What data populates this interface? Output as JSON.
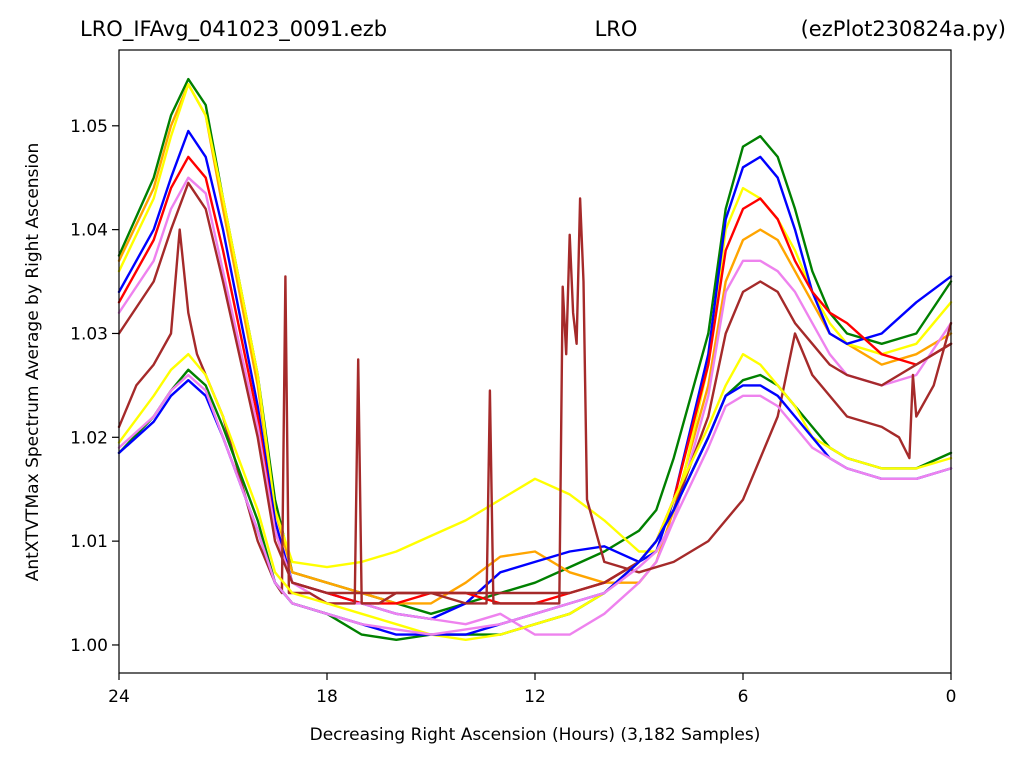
{
  "chart_data": {
    "type": "line",
    "title_parts": [
      "LRO_IFAvg_041023_0091.ezb",
      "LRO",
      "(ezPlot230824a.py)"
    ],
    "xlabel": "Decreasing Right Ascension (Hours) (3,182 Samples)",
    "ylabel": "AntXTVTMax Spectrum Average by Right Ascension",
    "xlim": [
      24,
      0
    ],
    "ylim": [
      0.9973,
      1.0573
    ],
    "xticks": [
      24,
      18,
      12,
      6,
      0
    ],
    "xtick_labels": [
      "24",
      "18",
      "12",
      "6",
      "0"
    ],
    "yticks": [
      1.0,
      1.01,
      1.02,
      1.03,
      1.04,
      1.05
    ],
    "ytick_labels": [
      "1.00",
      "1.01",
      "1.02",
      "1.03",
      "1.04",
      "1.05"
    ],
    "grid": false,
    "legend": "none",
    "series": [
      {
        "color": "#008000",
        "x": [
          24,
          23,
          22.5,
          22,
          21.5,
          21,
          20,
          19.5,
          19,
          18,
          17,
          16,
          15,
          14,
          13,
          12,
          11,
          10,
          9,
          8.5,
          8,
          7,
          6.5,
          6,
          5.5,
          5,
          4.5,
          4,
          3.5,
          3,
          2,
          1,
          0
        ],
        "y": [
          1.0375,
          1.045,
          1.051,
          1.0545,
          1.052,
          1.043,
          1.026,
          1.014,
          1.007,
          1.006,
          1.005,
          1.004,
          1.003,
          1.004,
          1.005,
          1.006,
          1.0075,
          1.009,
          1.011,
          1.013,
          1.018,
          1.03,
          1.042,
          1.048,
          1.049,
          1.047,
          1.042,
          1.036,
          1.032,
          1.03,
          1.029,
          1.03,
          1.035
        ]
      },
      {
        "color": "#ffa500",
        "x": [
          24,
          23,
          22.5,
          22,
          21.5,
          21,
          20,
          19.5,
          19,
          18,
          17,
          16,
          15,
          14,
          13,
          12,
          11,
          10,
          9,
          8.5,
          8,
          7,
          6.5,
          6,
          5.5,
          5,
          4.5,
          4,
          3.5,
          3,
          2,
          1,
          0
        ],
        "y": [
          1.037,
          1.044,
          1.05,
          1.054,
          1.051,
          1.042,
          1.025,
          1.013,
          1.007,
          1.006,
          1.005,
          1.004,
          1.004,
          1.006,
          1.0085,
          1.009,
          1.007,
          1.006,
          1.006,
          1.008,
          1.013,
          1.025,
          1.035,
          1.039,
          1.04,
          1.039,
          1.036,
          1.033,
          1.03,
          1.029,
          1.027,
          1.028,
          1.03
        ]
      },
      {
        "color": "#ffff00",
        "x": [
          24,
          23,
          22.5,
          22,
          21.5,
          21,
          20,
          19.5,
          19,
          18,
          17,
          16,
          15,
          14,
          13,
          12,
          11,
          10,
          9,
          8.5,
          8,
          7,
          6.5,
          6,
          5.5,
          5,
          4.5,
          4,
          3.5,
          3,
          2,
          1,
          0
        ],
        "y": [
          1.036,
          1.043,
          1.049,
          1.054,
          1.051,
          1.043,
          1.026,
          1.013,
          1.008,
          1.0075,
          1.008,
          1.009,
          1.0105,
          1.012,
          1.014,
          1.016,
          1.0145,
          1.012,
          1.009,
          1.009,
          1.012,
          1.027,
          1.04,
          1.044,
          1.043,
          1.041,
          1.038,
          1.034,
          1.031,
          1.029,
          1.028,
          1.029,
          1.033
        ]
      },
      {
        "color": "#0000ff",
        "x": [
          24,
          23,
          22.5,
          22,
          21.5,
          21,
          20,
          19.5,
          19,
          18,
          17,
          16,
          15,
          14,
          13,
          12,
          11,
          10,
          9,
          8.5,
          8,
          7,
          6.5,
          6,
          5.5,
          5,
          4.5,
          4,
          3.5,
          3,
          2,
          1,
          0
        ],
        "y": [
          1.034,
          1.04,
          1.045,
          1.0495,
          1.047,
          1.04,
          1.023,
          1.012,
          1.006,
          1.005,
          1.004,
          1.003,
          1.0025,
          1.004,
          1.007,
          1.008,
          1.009,
          1.0095,
          1.008,
          1.009,
          1.014,
          1.028,
          1.041,
          1.046,
          1.047,
          1.045,
          1.04,
          1.034,
          1.03,
          1.029,
          1.03,
          1.033,
          1.0355
        ]
      },
      {
        "color": "#ff0000",
        "x": [
          24,
          23,
          22.5,
          22,
          21.5,
          21,
          20,
          19.5,
          19,
          18,
          17,
          16,
          15,
          14,
          13,
          12,
          11,
          10,
          9,
          8.5,
          8,
          7,
          6.5,
          6,
          5.5,
          5,
          4.5,
          4,
          3.5,
          3,
          2,
          1,
          0
        ],
        "y": [
          1.033,
          1.039,
          1.044,
          1.047,
          1.045,
          1.038,
          1.022,
          1.011,
          1.006,
          1.005,
          1.004,
          1.004,
          1.005,
          1.005,
          1.004,
          1.004,
          1.005,
          1.006,
          1.008,
          1.01,
          1.014,
          1.027,
          1.038,
          1.042,
          1.043,
          1.041,
          1.037,
          1.034,
          1.032,
          1.031,
          1.028,
          1.027,
          1.029
        ]
      },
      {
        "color": "#ee82ee",
        "x": [
          24,
          23,
          22.5,
          22,
          21.5,
          21,
          20,
          19.5,
          19,
          18,
          17,
          16,
          15,
          14,
          13,
          12,
          11,
          10,
          9,
          8.5,
          8,
          7,
          6.5,
          6,
          5.5,
          5,
          4.5,
          4,
          3.5,
          3,
          2,
          1,
          0
        ],
        "y": [
          1.032,
          1.037,
          1.042,
          1.045,
          1.0435,
          1.036,
          1.021,
          1.011,
          1.006,
          1.004,
          1.004,
          1.003,
          1.0025,
          1.002,
          1.003,
          1.001,
          1.001,
          1.003,
          1.006,
          1.008,
          1.012,
          1.024,
          1.034,
          1.037,
          1.037,
          1.036,
          1.034,
          1.031,
          1.028,
          1.026,
          1.025,
          1.026,
          1.031
        ]
      },
      {
        "color": "#a52a2a",
        "x": [
          24,
          23,
          22.5,
          22,
          21.5,
          21,
          20,
          19.5,
          19,
          18,
          17,
          16,
          15,
          14,
          13,
          12,
          11,
          10,
          9,
          8.5,
          8,
          7,
          6.5,
          6,
          5.5,
          5,
          4.5,
          4,
          3.5,
          3,
          2,
          1,
          0
        ],
        "y": [
          1.03,
          1.035,
          1.04,
          1.0445,
          1.042,
          1.035,
          1.02,
          1.01,
          1.006,
          1.005,
          1.005,
          1.005,
          1.005,
          1.005,
          1.005,
          1.005,
          1.005,
          1.006,
          1.008,
          1.01,
          1.013,
          1.022,
          1.03,
          1.034,
          1.035,
          1.034,
          1.031,
          1.029,
          1.027,
          1.026,
          1.025,
          1.027,
          1.029
        ]
      },
      {
        "color": "#a52a2a",
        "x": [
          24,
          23.5,
          23,
          22.5,
          22.25,
          22,
          21.75,
          21.5,
          21,
          20.5,
          20,
          19.5,
          19.3,
          19.2,
          19.1,
          19,
          18.5,
          18,
          17.2,
          17.1,
          17,
          16.5,
          16,
          15,
          14,
          13.4,
          13.3,
          13.2,
          13.1,
          13,
          12,
          11.3,
          11.2,
          11.1,
          11.0,
          10.9,
          10.8,
          10.7,
          10.6,
          10.5,
          10,
          9,
          8,
          7,
          6,
          5,
          4.5,
          4,
          3,
          2,
          1.5,
          1.2,
          1.1,
          1,
          0.5,
          0
        ],
        "y": [
          1.021,
          1.025,
          1.027,
          1.03,
          1.04,
          1.032,
          1.028,
          1.026,
          1.022,
          1.016,
          1.01,
          1.006,
          1.005,
          1.0355,
          1.005,
          1.005,
          1.005,
          1.004,
          1.004,
          1.0275,
          1.004,
          1.004,
          1.005,
          1.005,
          1.004,
          1.004,
          1.0245,
          1.004,
          1.004,
          1.004,
          1.004,
          1.004,
          1.0345,
          1.028,
          1.0395,
          1.032,
          1.029,
          1.043,
          1.035,
          1.014,
          1.008,
          1.007,
          1.008,
          1.01,
          1.014,
          1.022,
          1.03,
          1.026,
          1.022,
          1.021,
          1.02,
          1.018,
          1.026,
          1.022,
          1.025,
          1.031
        ]
      },
      {
        "color": "#008000",
        "x": [
          24,
          23,
          22.5,
          22,
          21.5,
          21,
          20,
          19.5,
          19,
          18,
          17,
          16,
          15,
          14,
          13,
          12,
          11,
          10,
          9,
          8.5,
          8,
          7,
          6.5,
          6,
          5.5,
          5,
          4.5,
          4,
          3.5,
          3,
          2,
          1,
          0
        ],
        "y": [
          1.0185,
          1.022,
          1.0245,
          1.0265,
          1.025,
          1.021,
          1.012,
          1.006,
          1.004,
          1.003,
          1.001,
          1.0005,
          1.001,
          1.001,
          1.001,
          1.002,
          1.003,
          1.005,
          1.008,
          1.01,
          1.013,
          1.02,
          1.024,
          1.0255,
          1.026,
          1.025,
          1.023,
          1.021,
          1.019,
          1.018,
          1.017,
          1.017,
          1.0185
        ]
      },
      {
        "color": "#ffff00",
        "x": [
          24,
          23,
          22.5,
          22,
          21.5,
          21,
          20,
          19.5,
          19,
          18,
          17,
          16,
          15,
          14,
          13,
          12,
          11,
          10,
          9,
          8.5,
          8,
          7,
          6.5,
          6,
          5.5,
          5,
          4.5,
          4,
          3.5,
          3,
          2,
          1,
          0
        ],
        "y": [
          1.0195,
          1.024,
          1.0265,
          1.028,
          1.026,
          1.022,
          1.013,
          1.007,
          1.005,
          1.004,
          1.003,
          1.002,
          1.001,
          1.0005,
          1.001,
          1.002,
          1.003,
          1.005,
          1.008,
          1.01,
          1.014,
          1.021,
          1.025,
          1.028,
          1.027,
          1.025,
          1.023,
          1.02,
          1.019,
          1.018,
          1.017,
          1.017,
          1.018
        ]
      },
      {
        "color": "#0000ff",
        "x": [
          24,
          23,
          22.5,
          22,
          21.5,
          21,
          20,
          19.5,
          19,
          18,
          17,
          16,
          15,
          14,
          13,
          12,
          11,
          10,
          9,
          8.5,
          8,
          7,
          6.5,
          6,
          5.5,
          5,
          4.5,
          4,
          3.5,
          3,
          2,
          1,
          0
        ],
        "y": [
          1.0185,
          1.0215,
          1.024,
          1.0255,
          1.024,
          1.02,
          1.011,
          1.006,
          1.004,
          1.003,
          1.002,
          1.001,
          1.001,
          1.001,
          1.002,
          1.003,
          1.004,
          1.005,
          1.008,
          1.01,
          1.013,
          1.02,
          1.024,
          1.025,
          1.025,
          1.024,
          1.022,
          1.02,
          1.018,
          1.017,
          1.016,
          1.016,
          1.017
        ]
      },
      {
        "color": "#ee82ee",
        "x": [
          24,
          23,
          22.5,
          22,
          21.5,
          21,
          20,
          19.5,
          19,
          18,
          17,
          16,
          15,
          14,
          13,
          12,
          11,
          10,
          9,
          8.5,
          8,
          7,
          6.5,
          6,
          5.5,
          5,
          4.5,
          4,
          3.5,
          3,
          2,
          1,
          0
        ],
        "y": [
          1.019,
          1.022,
          1.0245,
          1.026,
          1.0245,
          1.02,
          1.011,
          1.006,
          1.004,
          1.003,
          1.002,
          1.0015,
          1.001,
          1.0015,
          1.002,
          1.003,
          1.004,
          1.005,
          1.0075,
          1.009,
          1.012,
          1.019,
          1.023,
          1.024,
          1.024,
          1.023,
          1.021,
          1.019,
          1.018,
          1.017,
          1.016,
          1.016,
          1.017
        ]
      }
    ]
  }
}
